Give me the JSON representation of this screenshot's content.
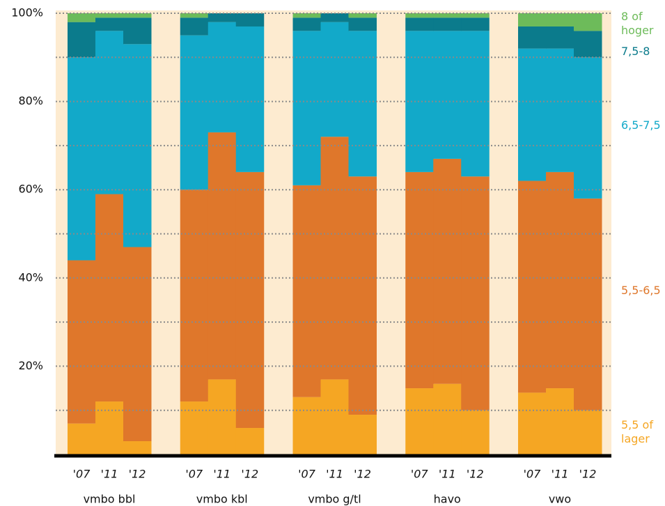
{
  "chart_data": {
    "type": "stacked_bar",
    "groups": [
      "vmbo bbl",
      "vmbo kbl",
      "vmbo g/tl",
      "havo",
      "vwo"
    ],
    "categories": [
      "'07",
      "'11",
      "'12",
      "'07",
      "'11",
      "'12",
      "'07",
      "'11",
      "'12",
      "'07",
      "'11",
      "'12",
      "'07",
      "'11",
      "'12"
    ],
    "series": [
      {
        "name": "5,5 of lager",
        "color": "#f5a623",
        "values": [
          7,
          12,
          3,
          12,
          17,
          6,
          13,
          17,
          9,
          15,
          16,
          10,
          14,
          15,
          10
        ]
      },
      {
        "name": "5,5-6,5",
        "color": "#df772b",
        "values": [
          37,
          47,
          44,
          48,
          56,
          58,
          48,
          55,
          54,
          49,
          51,
          53,
          48,
          49,
          48
        ]
      },
      {
        "name": "6,5-7,5",
        "color": "#12a9c9",
        "values": [
          46,
          37,
          46,
          35,
          25,
          33,
          35,
          26,
          33,
          32,
          29,
          33,
          30,
          28,
          32
        ]
      },
      {
        "name": "7,5-8",
        "color": "#0b7b8c",
        "values": [
          8,
          3,
          6,
          4,
          2,
          3,
          3,
          2,
          3,
          3,
          3,
          3,
          5,
          5,
          6
        ]
      },
      {
        "name": "8 of hoger",
        "color": "#6dbb5a",
        "values": [
          2,
          1,
          1,
          1,
          0,
          0,
          1,
          0,
          1,
          1,
          1,
          1,
          3,
          3,
          4
        ]
      }
    ],
    "ylim": [
      0,
      100
    ],
    "yticks": [
      {
        "value": 20,
        "label": "20%"
      },
      {
        "value": 40,
        "label": "40%"
      },
      {
        "value": 60,
        "label": "60%"
      },
      {
        "value": 80,
        "label": "80%"
      },
      {
        "value": 100,
        "label": "100%"
      }
    ],
    "minor_yticks": [
      10,
      30,
      50,
      70,
      90
    ],
    "grid": true,
    "legend": "right",
    "background": "#fdebd0"
  }
}
